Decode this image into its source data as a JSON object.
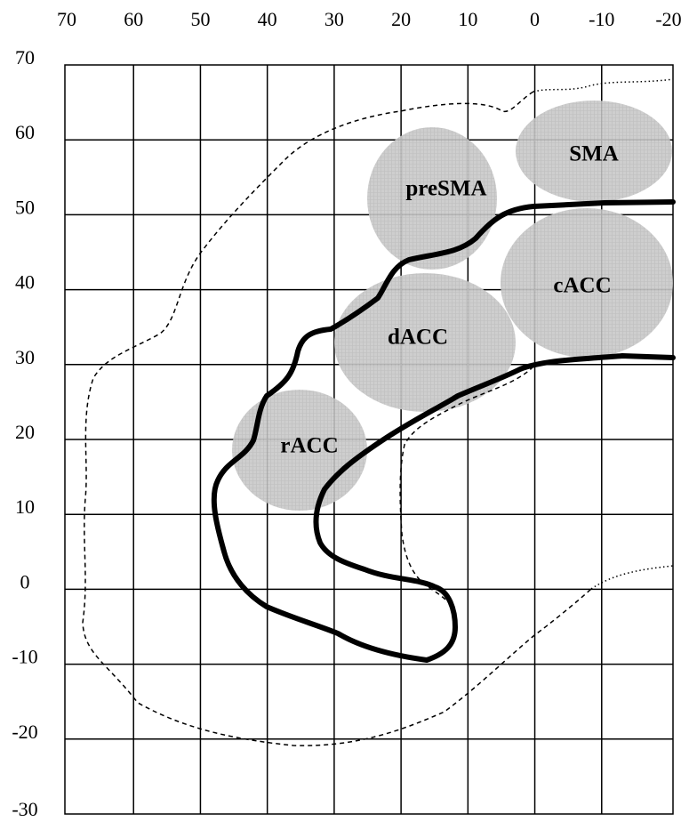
{
  "x_axis": {
    "labels": [
      70,
      60,
      50,
      40,
      30,
      20,
      10,
      0,
      -10,
      -20
    ]
  },
  "y_axis": {
    "labels": [
      70,
      60,
      50,
      40,
      30,
      20,
      10,
      0,
      -10,
      -20,
      -30
    ]
  },
  "regions": [
    {
      "label": "preSMA"
    },
    {
      "label": "SMA"
    },
    {
      "label": "cACC"
    },
    {
      "label": "dACC"
    },
    {
      "label": "rACC"
    }
  ]
}
